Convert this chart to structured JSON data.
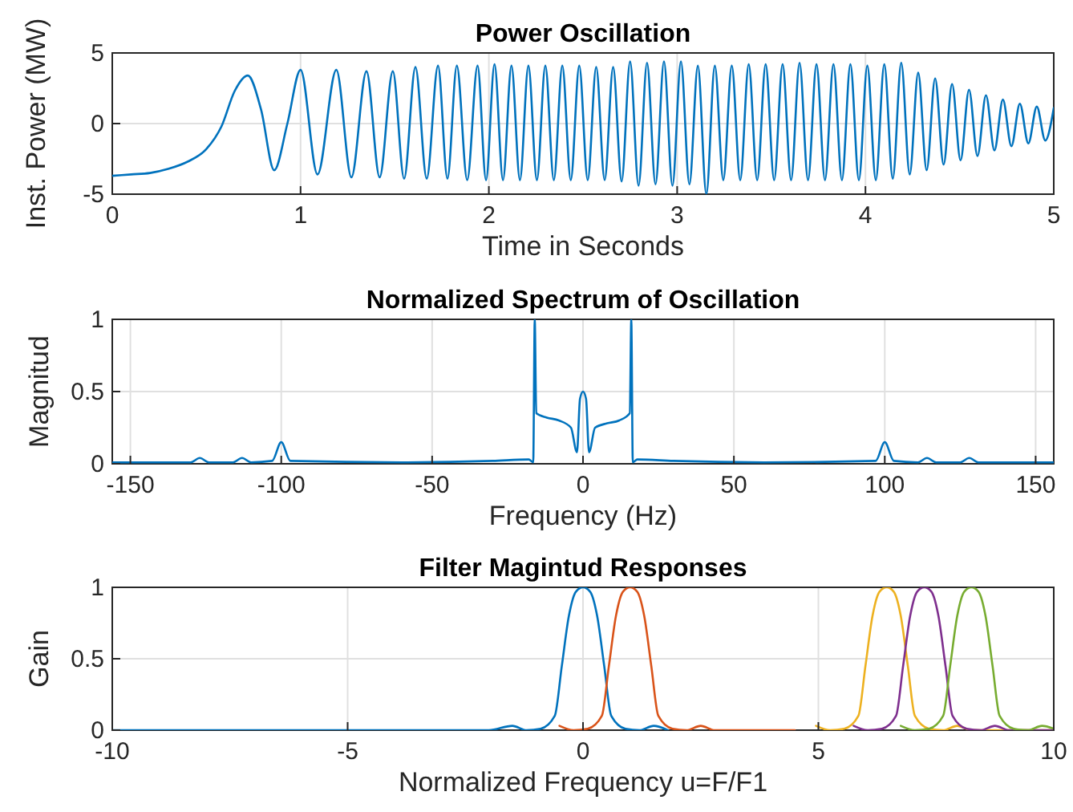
{
  "chart_data": [
    {
      "type": "line",
      "title": "Power Oscillation",
      "xlabel": "Time in Seconds",
      "ylabel": "Inst. Power (MW)",
      "xlim": [
        0,
        5
      ],
      "ylim": [
        -5,
        5
      ],
      "xticks": [
        0,
        1,
        2,
        3,
        4,
        5
      ],
      "yticks": [
        -5,
        0,
        5
      ],
      "grid": true,
      "series": [
        {
          "color": "#0072bd",
          "x": [
            0,
            0.1,
            0.2,
            0.3,
            0.4,
            0.5,
            0.58,
            0.65,
            0.72,
            0.79,
            0.86,
            0.93,
            1.0,
            1.09,
            1.19,
            1.27,
            1.35,
            1.42,
            1.49,
            1.55,
            1.61,
            1.67,
            1.73,
            1.78,
            1.83,
            1.885,
            1.94,
            1.985,
            2.03,
            2.075,
            2.12,
            2.165,
            2.21,
            2.255,
            2.3,
            2.345,
            2.39,
            2.435,
            2.48,
            2.525,
            2.57,
            2.615,
            2.66,
            2.705,
            2.75,
            2.795,
            2.84,
            2.885,
            2.93,
            2.975,
            3.02,
            3.065,
            3.11,
            3.155,
            3.2,
            3.245,
            3.29,
            3.335,
            3.38,
            3.425,
            3.47,
            3.515,
            3.56,
            3.605,
            3.65,
            3.695,
            3.74,
            3.785,
            3.83,
            3.875,
            3.92,
            3.965,
            4.01,
            4.055,
            4.1,
            4.145,
            4.19,
            4.235,
            4.28,
            4.325,
            4.37,
            4.415,
            4.46,
            4.505,
            4.55,
            4.595,
            4.64,
            4.685,
            4.73,
            4.775,
            4.82,
            4.865,
            4.91,
            4.955,
            5.0
          ],
          "values": [
            -3.7,
            -3.6,
            -3.5,
            -3.2,
            -2.7,
            -1.8,
            -0.2,
            2.3,
            3.4,
            1.0,
            -3.3,
            0,
            3.8,
            -3.6,
            3.8,
            -3.8,
            3.7,
            -3.8,
            3.7,
            -3.9,
            4.0,
            -3.9,
            4.1,
            -3.9,
            4.1,
            -4.0,
            4.1,
            -4.0,
            4.2,
            -4.0,
            4.1,
            -4.0,
            4.1,
            -4.0,
            4.1,
            -4.0,
            4.1,
            -4.0,
            4.1,
            -4.0,
            4.0,
            -4.0,
            4.0,
            -4.1,
            4.4,
            -4.4,
            4.3,
            -4.3,
            4.4,
            -4.4,
            4.4,
            -4.3,
            4.1,
            -5.0,
            4.1,
            -4.0,
            4.1,
            -4.0,
            4.2,
            -4.0,
            4.2,
            -4.0,
            4.2,
            -4.0,
            4.3,
            -4.0,
            4.2,
            -4.0,
            4.2,
            -4.0,
            4.2,
            -4.0,
            4.1,
            -4.0,
            4.2,
            -3.9,
            4.3,
            -3.6,
            3.6,
            -3.3,
            3.2,
            -2.9,
            2.8,
            -2.6,
            2.4,
            -2.3,
            2.0,
            -1.9,
            1.7,
            -1.6,
            1.4,
            -1.4,
            1.2,
            -1.2,
            1.1
          ]
        }
      ]
    },
    {
      "type": "line",
      "title": "Normalized Spectrum of Oscillation",
      "xlabel": "Frequency (Hz)",
      "ylabel": "Magnitud",
      "xlim": [
        -156,
        156
      ],
      "ylim": [
        0,
        1
      ],
      "xticks": [
        -150,
        -100,
        -50,
        0,
        50,
        100,
        150
      ],
      "yticks": [
        0,
        0.5,
        1
      ],
      "grid": true,
      "series": [
        {
          "color": "#0072bd",
          "x": [
            -156,
            -130,
            -127,
            -124,
            -116,
            -113,
            -110,
            -103,
            -100,
            -97,
            -60,
            -30,
            -18,
            -16.5,
            -16,
            -15.5,
            -12,
            -8,
            -4,
            -2,
            -1,
            0,
            1,
            2,
            4,
            8,
            12,
            15.5,
            16,
            16.5,
            18,
            30,
            60,
            97,
            100,
            103,
            111,
            114,
            117,
            125,
            128,
            131,
            156
          ],
          "values": [
            0.01,
            0.01,
            0.04,
            0.01,
            0.01,
            0.04,
            0.01,
            0.02,
            0.15,
            0.02,
            0.01,
            0.02,
            0.03,
            0.01,
            1,
            0.35,
            0.32,
            0.3,
            0.25,
            0.08,
            0.45,
            0.5,
            0.45,
            0.08,
            0.25,
            0.28,
            0.3,
            0.35,
            1,
            0.01,
            0.03,
            0.02,
            0.01,
            0.02,
            0.15,
            0.02,
            0.01,
            0.04,
            0.01,
            0.01,
            0.04,
            0.01,
            0.01
          ]
        }
      ]
    },
    {
      "type": "line",
      "title": "Filter Magintud Responses",
      "xlabel": "Normalized Frequency u=F/F1",
      "ylabel": "Gain",
      "xlim": [
        -10,
        10
      ],
      "ylim": [
        0,
        1
      ],
      "xticks": [
        -10,
        -5,
        0,
        5,
        10
      ],
      "yticks": [
        0,
        0.5,
        1
      ],
      "grid": true,
      "series": [
        {
          "color": "#0072bd",
          "x": [
            -10,
            -2,
            -1.5,
            -1.2,
            -0.9,
            -0.6,
            -0.45,
            -0.3,
            -0.15,
            0,
            0.15,
            0.3,
            0.45,
            0.6,
            0.9,
            1.2,
            1.5,
            1.8
          ],
          "values": [
            0,
            0,
            0.03,
            0,
            0.01,
            0.1,
            0.45,
            0.8,
            0.97,
            1,
            0.97,
            0.8,
            0.45,
            0.1,
            0.01,
            0,
            0.03,
            0
          ]
        },
        {
          "color": "#d95319",
          "x": [
            -0.5,
            -0.2,
            0.1,
            0.4,
            0.55,
            0.7,
            0.85,
            1,
            1.15,
            1.3,
            1.45,
            1.6,
            1.9,
            2.2,
            2.5,
            2.8,
            4.5
          ],
          "values": [
            0.03,
            0,
            0.01,
            0.1,
            0.45,
            0.8,
            0.97,
            1,
            0.97,
            0.8,
            0.45,
            0.1,
            0.01,
            0,
            0.03,
            0,
            0
          ]
        },
        {
          "color": "#edb120",
          "x": [
            4.95,
            5.25,
            5.55,
            5.85,
            6.0,
            6.15,
            6.3,
            6.45,
            6.6,
            6.75,
            6.9,
            7.05,
            7.35,
            7.65,
            7.95,
            8.25,
            10
          ],
          "values": [
            0.03,
            0,
            0.01,
            0.1,
            0.45,
            0.8,
            0.97,
            1,
            0.97,
            0.8,
            0.45,
            0.1,
            0.01,
            0,
            0.03,
            0,
            0
          ]
        },
        {
          "color": "#7e2f8e",
          "x": [
            5.75,
            6.05,
            6.35,
            6.65,
            6.8,
            6.95,
            7.1,
            7.25,
            7.4,
            7.55,
            7.7,
            7.85,
            8.15,
            8.45,
            8.75,
            9.05,
            10
          ],
          "values": [
            0.03,
            0,
            0.01,
            0.1,
            0.45,
            0.8,
            0.97,
            1,
            0.97,
            0.8,
            0.45,
            0.1,
            0.01,
            0,
            0.03,
            0,
            0
          ]
        },
        {
          "color": "#77ac30",
          "x": [
            6.75,
            7.05,
            7.35,
            7.65,
            7.8,
            7.95,
            8.1,
            8.25,
            8.4,
            8.55,
            8.7,
            8.85,
            9.15,
            9.45,
            9.75,
            10
          ],
          "values": [
            0.03,
            0,
            0.01,
            0.1,
            0.45,
            0.8,
            0.97,
            1,
            0.97,
            0.8,
            0.45,
            0.1,
            0.01,
            0,
            0.03,
            0.01
          ]
        }
      ]
    }
  ]
}
